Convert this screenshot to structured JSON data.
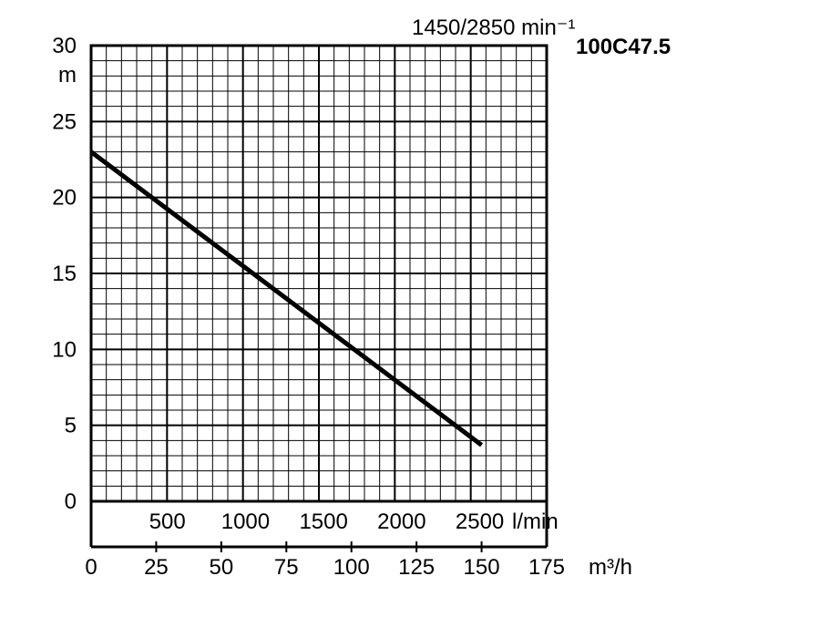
{
  "chart_data": {
    "type": "line",
    "title": "1450/2850 min⁻¹",
    "subtitle": "100C47.5",
    "ylabel": "m",
    "ylim": [
      0,
      30
    ],
    "yticks": [
      "0",
      "5",
      "10",
      "15",
      "20",
      "25",
      "30"
    ],
    "xlim_m3h": [
      0,
      175
    ],
    "x_m3h_ticks": [
      "0",
      "25",
      "50",
      "75",
      "100",
      "125",
      "150",
      "175"
    ],
    "x_m3h_label": "m³/h",
    "x_lmin_ticks": [
      "500",
      "1000",
      "1500",
      "2000",
      "2500"
    ],
    "x_lmin_label": "l/min",
    "grid": true,
    "series": [
      {
        "x": [
          0,
          150
        ],
        "values": [
          23,
          3.7
        ]
      }
    ]
  }
}
